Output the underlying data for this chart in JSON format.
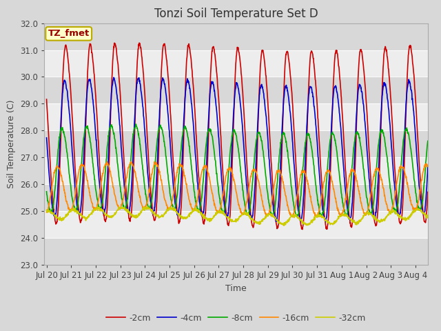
{
  "title": "Tonzi Soil Temperature Set D",
  "xlabel": "Time",
  "ylabel": "Soil Temperature (C)",
  "annotation": "TZ_fmet",
  "ylim": [
    23.0,
    32.0
  ],
  "yticks": [
    23.0,
    24.0,
    25.0,
    26.0,
    27.0,
    28.0,
    29.0,
    30.0,
    31.0,
    32.0
  ],
  "xtick_labels": [
    "Jul 20",
    "Jul 21",
    "Jul 22",
    "Jul 23",
    "Jul 24",
    "Jul 25",
    "Jul 26",
    "Jul 27",
    "Jul 28",
    "Jul 29",
    "Jul 30",
    "Jul 31",
    "Aug 1",
    "Aug 2",
    "Aug 3",
    "Aug 4"
  ],
  "n_days": 15.5,
  "points_per_day": 96,
  "series": [
    {
      "label": "-2cm",
      "color": "#cc0000",
      "depth": 2,
      "amplitude": 3.9,
      "phase_shift": 0.0,
      "base_mean": 27.8,
      "min_val": 24.0,
      "max_val": 31.8,
      "sharpness": 3.0
    },
    {
      "label": "-4cm",
      "color": "#0000cc",
      "depth": 4,
      "amplitude": 2.9,
      "phase_shift": 0.05,
      "base_mean": 27.3,
      "min_val": 24.4,
      "max_val": 30.2,
      "sharpness": 2.5
    },
    {
      "label": "-8cm",
      "color": "#00aa00",
      "depth": 8,
      "amplitude": 1.7,
      "phase_shift": 0.18,
      "base_mean": 26.5,
      "min_val": 24.8,
      "max_val": 28.2,
      "sharpness": 1.5
    },
    {
      "label": "-16cm",
      "color": "#ff8800",
      "depth": 16,
      "amplitude": 0.9,
      "phase_shift": 0.38,
      "base_mean": 25.8,
      "min_val": 24.9,
      "max_val": 26.7,
      "sharpness": 1.0
    },
    {
      "label": "-32cm",
      "color": "#cccc00",
      "depth": 32,
      "amplitude": 0.18,
      "phase_shift": 0.75,
      "base_mean": 24.82,
      "min_val": 24.64,
      "max_val": 25.0,
      "sharpness": 1.0
    }
  ],
  "fig_bg_color": "#d8d8d8",
  "plot_bg_color": "#d8d8d8",
  "white_band_alpha": 0.55,
  "linewidth": 1.2,
  "title_fontsize": 12,
  "label_fontsize": 9,
  "tick_fontsize": 8.5
}
